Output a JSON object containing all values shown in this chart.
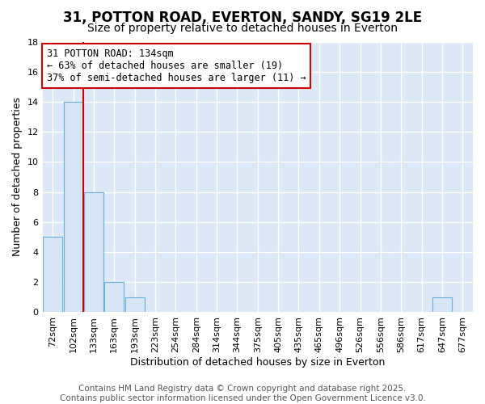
{
  "title": "31, POTTON ROAD, EVERTON, SANDY, SG19 2LE",
  "subtitle": "Size of property relative to detached houses in Everton",
  "xlabel": "Distribution of detached houses by size in Everton",
  "ylabel": "Number of detached properties",
  "bin_labels": [
    "72sqm",
    "102sqm",
    "133sqm",
    "163sqm",
    "193sqm",
    "223sqm",
    "254sqm",
    "284sqm",
    "314sqm",
    "344sqm",
    "375sqm",
    "405sqm",
    "435sqm",
    "465sqm",
    "496sqm",
    "526sqm",
    "556sqm",
    "586sqm",
    "617sqm",
    "647sqm",
    "677sqm"
  ],
  "bar_values": [
    5,
    14,
    8,
    2,
    1,
    0,
    0,
    0,
    0,
    0,
    0,
    0,
    0,
    0,
    0,
    0,
    0,
    0,
    0,
    1,
    0
  ],
  "bar_color": "#d6e6f5",
  "bar_edge_color": "#6aaed6",
  "vline_x_index": 2,
  "vline_color": "#cc0000",
  "annotation_line1": "31 POTTON ROAD: 134sqm",
  "annotation_line2": "← 63% of detached houses are smaller (19)",
  "annotation_line3": "37% of semi-detached houses are larger (11) →",
  "annotation_box_facecolor": "#ffffff",
  "annotation_box_edgecolor": "#cc0000",
  "ylim": [
    0,
    18
  ],
  "yticks": [
    0,
    2,
    4,
    6,
    8,
    10,
    12,
    14,
    16,
    18
  ],
  "fig_bg_color": "#ffffff",
  "plot_bg_color": "#dce8f5",
  "grid_color": "#ffffff",
  "title_fontsize": 12,
  "subtitle_fontsize": 10,
  "axis_label_fontsize": 9,
  "tick_fontsize": 8,
  "annotation_fontsize": 8.5,
  "footer_fontsize": 7.5,
  "footer_text": "Contains HM Land Registry data © Crown copyright and database right 2025.\nContains public sector information licensed under the Open Government Licence v3.0."
}
